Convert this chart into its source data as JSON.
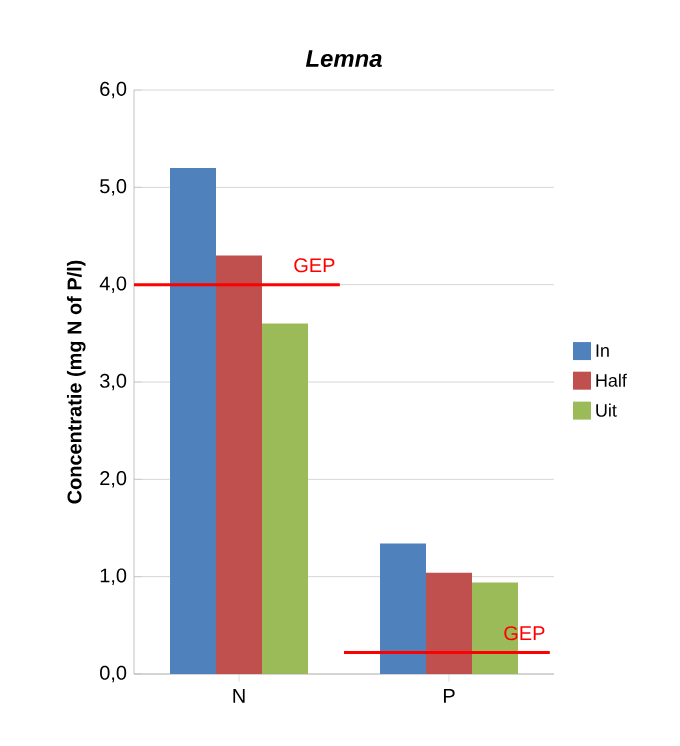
{
  "chart_data": {
    "type": "bar",
    "title": "*Lemna*",
    "ylabel": "Concentratie (mg N of P/l)",
    "categories": [
      "N",
      "P"
    ],
    "series": [
      {
        "name": "In",
        "color": "#4f81bd",
        "values": [
          5.2,
          1.34
        ]
      },
      {
        "name": "Half",
        "color": "#c0504d",
        "values": [
          4.3,
          1.04
        ]
      },
      {
        "name": "Uit",
        "color": "#9bbb59",
        "values": [
          3.6,
          0.94
        ]
      }
    ],
    "ylim": [
      0,
      6
    ],
    "yticks": [
      {
        "value": 0,
        "label": "0,0"
      },
      {
        "value": 1,
        "label": "1,0"
      },
      {
        "value": 2,
        "label": "2,0"
      },
      {
        "value": 3,
        "label": "3,0"
      },
      {
        "value": 4,
        "label": "4,0"
      },
      {
        "value": 5,
        "label": "5,0"
      },
      {
        "value": 6,
        "label": "6,0"
      }
    ],
    "ref_lines": [
      {
        "axis": "y",
        "value": 4.0,
        "label": "GEP",
        "color": "#ff0000"
      },
      {
        "axis": "y",
        "value": 0.22,
        "label": "GEP",
        "color": "#ff0000"
      }
    ],
    "grid": "y",
    "legend": "right"
  }
}
